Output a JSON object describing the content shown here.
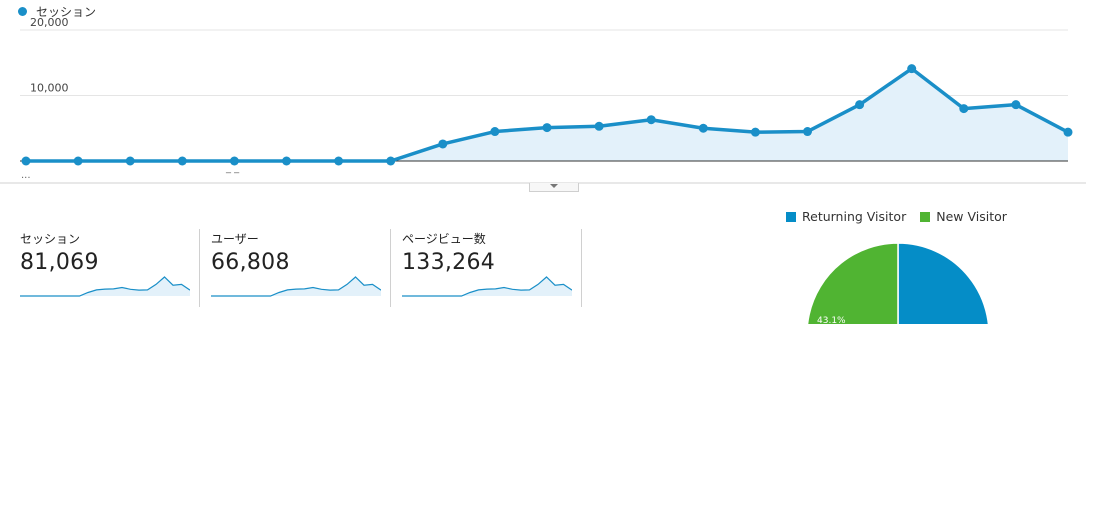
{
  "colors": {
    "series": "#1a8fc8",
    "fill": "#e3f1fa",
    "returning": "#058dc7",
    "new": "#50b432",
    "grid": "#e5e5e5"
  },
  "chart_data": [
    {
      "type": "area",
      "series": [
        {
          "name": "セッション",
          "values": [
            0,
            0,
            0,
            0,
            0,
            0,
            0,
            0,
            2600,
            4500,
            5100,
            5300,
            6300,
            5000,
            4400,
            4500,
            8600,
            14100,
            8000,
            8600,
            4400
          ]
        }
      ],
      "ylim": [
        0,
        20000
      ],
      "y_ticks": [
        "10,000",
        "20,000"
      ],
      "x_tick_labels": [
        "...",
        "_ _"
      ],
      "grid": true
    },
    {
      "type": "pie",
      "legend": [
        "Returning Visitor",
        "New Visitor"
      ],
      "values": [
        56.9,
        43.1
      ],
      "slice_labels": [
        "",
        "43.1%"
      ],
      "legend_position": "top"
    }
  ],
  "metrics": [
    {
      "label": "セッション",
      "value": "81,069"
    },
    {
      "label": "ユーザー",
      "value": "66,808"
    },
    {
      "label": "ページビュー数",
      "value": "133,264"
    }
  ]
}
